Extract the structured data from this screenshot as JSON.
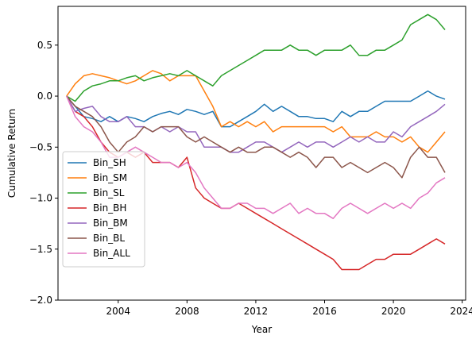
{
  "chart_data": {
    "type": "line",
    "title": "",
    "xlabel": "Year",
    "ylabel": "Cumulative Return",
    "xlim": [
      2000.5,
      2024.2
    ],
    "ylim": [
      -2.0,
      0.88
    ],
    "xticks": [
      2004,
      2008,
      2012,
      2016,
      2020,
      2024
    ],
    "yticks": [
      -2.0,
      -1.5,
      -1.0,
      -0.5,
      0.0,
      0.5
    ],
    "ytick_labels": [
      "−2.0",
      "−1.5",
      "−1.0",
      "−0.5",
      "0.0",
      "0.5"
    ],
    "grid": false,
    "legend_position": "lower-left",
    "series": [
      {
        "name": "Bin_SH",
        "color": "#1f77b4",
        "x": [
          2001.0,
          2001.5,
          2002.0,
          2002.5,
          2003.0,
          2003.5,
          2004.0,
          2004.5,
          2005.0,
          2005.5,
          2006.0,
          2006.5,
          2007.0,
          2007.5,
          2008.0,
          2008.5,
          2009.0,
          2009.5,
          2010.0,
          2010.5,
          2011.0,
          2011.5,
          2012.0,
          2012.5,
          2013.0,
          2013.5,
          2014.0,
          2014.5,
          2015.0,
          2015.5,
          2016.0,
          2016.5,
          2017.0,
          2017.5,
          2018.0,
          2018.5,
          2019.0,
          2019.5,
          2020.0,
          2020.5,
          2021.0,
          2021.5,
          2022.0,
          2022.5,
          2023.0
        ],
        "y": [
          0.0,
          -0.1,
          -0.2,
          -0.22,
          -0.25,
          -0.2,
          -0.25,
          -0.2,
          -0.22,
          -0.25,
          -0.2,
          -0.17,
          -0.15,
          -0.18,
          -0.13,
          -0.15,
          -0.18,
          -0.15,
          -0.3,
          -0.3,
          -0.25,
          -0.2,
          -0.15,
          -0.08,
          -0.15,
          -0.1,
          -0.15,
          -0.2,
          -0.2,
          -0.22,
          -0.22,
          -0.25,
          -0.15,
          -0.2,
          -0.15,
          -0.15,
          -0.1,
          -0.05,
          -0.05,
          -0.05,
          -0.05,
          0.0,
          0.05,
          0.0,
          -0.03
        ]
      },
      {
        "name": "Bin_SM",
        "color": "#ff7f0e",
        "x": [
          2001.0,
          2001.5,
          2002.0,
          2002.5,
          2003.0,
          2003.5,
          2004.0,
          2004.5,
          2005.0,
          2005.5,
          2006.0,
          2006.5,
          2007.0,
          2007.5,
          2008.0,
          2008.5,
          2009.0,
          2009.5,
          2010.0,
          2010.5,
          2011.0,
          2011.5,
          2012.0,
          2012.5,
          2013.0,
          2013.5,
          2014.0,
          2014.5,
          2015.0,
          2015.5,
          2016.0,
          2016.5,
          2017.0,
          2017.5,
          2018.0,
          2018.5,
          2019.0,
          2019.5,
          2020.0,
          2020.5,
          2021.0,
          2021.5,
          2022.0,
          2022.5,
          2023.0
        ],
        "y": [
          0.0,
          0.12,
          0.2,
          0.22,
          0.2,
          0.18,
          0.15,
          0.12,
          0.15,
          0.2,
          0.25,
          0.22,
          0.15,
          0.2,
          0.2,
          0.2,
          0.05,
          -0.1,
          -0.3,
          -0.25,
          -0.3,
          -0.25,
          -0.3,
          -0.25,
          -0.35,
          -0.3,
          -0.3,
          -0.3,
          -0.3,
          -0.3,
          -0.3,
          -0.35,
          -0.3,
          -0.4,
          -0.4,
          -0.4,
          -0.35,
          -0.4,
          -0.4,
          -0.45,
          -0.4,
          -0.5,
          -0.55,
          -0.45,
          -0.35
        ]
      },
      {
        "name": "Bin_SL",
        "color": "#2ca02c",
        "x": [
          2001.0,
          2001.5,
          2002.0,
          2002.5,
          2003.0,
          2003.5,
          2004.0,
          2004.5,
          2005.0,
          2005.5,
          2006.0,
          2006.5,
          2007.0,
          2007.5,
          2008.0,
          2008.5,
          2009.0,
          2009.5,
          2010.0,
          2010.5,
          2011.0,
          2011.5,
          2012.0,
          2012.5,
          2013.0,
          2013.5,
          2014.0,
          2014.5,
          2015.0,
          2015.5,
          2016.0,
          2016.5,
          2017.0,
          2017.5,
          2018.0,
          2018.5,
          2019.0,
          2019.5,
          2020.0,
          2020.5,
          2021.0,
          2021.5,
          2022.0,
          2022.5,
          2023.0
        ],
        "y": [
          0.0,
          -0.05,
          0.05,
          0.1,
          0.12,
          0.15,
          0.15,
          0.18,
          0.2,
          0.15,
          0.18,
          0.2,
          0.22,
          0.2,
          0.25,
          0.2,
          0.15,
          0.1,
          0.2,
          0.25,
          0.3,
          0.35,
          0.4,
          0.45,
          0.45,
          0.45,
          0.5,
          0.45,
          0.45,
          0.4,
          0.45,
          0.45,
          0.45,
          0.5,
          0.4,
          0.4,
          0.45,
          0.45,
          0.5,
          0.55,
          0.7,
          0.75,
          0.8,
          0.75,
          0.65
        ]
      },
      {
        "name": "Bin_BH",
        "color": "#d62728",
        "x": [
          2001.0,
          2001.5,
          2002.0,
          2002.5,
          2003.0,
          2003.5,
          2004.0,
          2004.5,
          2005.0,
          2005.5,
          2006.0,
          2006.5,
          2007.0,
          2007.5,
          2008.0,
          2008.5,
          2009.0,
          2009.5,
          2010.0,
          2010.5,
          2011.0,
          2011.5,
          2012.0,
          2012.5,
          2013.0,
          2013.5,
          2014.0,
          2014.5,
          2015.0,
          2015.5,
          2016.0,
          2016.5,
          2017.0,
          2017.5,
          2018.0,
          2018.5,
          2019.0,
          2019.5,
          2020.0,
          2020.5,
          2021.0,
          2021.5,
          2022.0,
          2022.5,
          2023.0
        ],
        "y": [
          0.0,
          -0.15,
          -0.2,
          -0.3,
          -0.45,
          -0.55,
          -0.6,
          -0.55,
          -0.6,
          -0.55,
          -0.65,
          -0.65,
          -0.65,
          -0.7,
          -0.6,
          -0.9,
          -1.0,
          -1.05,
          -1.1,
          -1.1,
          -1.05,
          -1.1,
          -1.15,
          -1.2,
          -1.25,
          -1.3,
          -1.35,
          -1.4,
          -1.45,
          -1.5,
          -1.55,
          -1.6,
          -1.7,
          -1.7,
          -1.7,
          -1.65,
          -1.6,
          -1.6,
          -1.55,
          -1.55,
          -1.55,
          -1.5,
          -1.45,
          -1.4,
          -1.45
        ]
      },
      {
        "name": "Bin_BM",
        "color": "#9467bd",
        "x": [
          2001.0,
          2001.5,
          2002.0,
          2002.5,
          2003.0,
          2003.5,
          2004.0,
          2004.5,
          2005.0,
          2005.5,
          2006.0,
          2006.5,
          2007.0,
          2007.5,
          2008.0,
          2008.5,
          2009.0,
          2009.5,
          2010.0,
          2010.5,
          2011.0,
          2011.5,
          2012.0,
          2012.5,
          2013.0,
          2013.5,
          2014.0,
          2014.5,
          2015.0,
          2015.5,
          2016.0,
          2016.5,
          2017.0,
          2017.5,
          2018.0,
          2018.5,
          2019.0,
          2019.5,
          2020.0,
          2020.5,
          2021.0,
          2021.5,
          2022.0,
          2022.5,
          2023.0
        ],
        "y": [
          0.0,
          -0.15,
          -0.12,
          -0.1,
          -0.2,
          -0.25,
          -0.25,
          -0.2,
          -0.3,
          -0.3,
          -0.35,
          -0.3,
          -0.35,
          -0.3,
          -0.35,
          -0.35,
          -0.5,
          -0.5,
          -0.5,
          -0.55,
          -0.55,
          -0.5,
          -0.45,
          -0.45,
          -0.5,
          -0.55,
          -0.5,
          -0.45,
          -0.5,
          -0.45,
          -0.45,
          -0.5,
          -0.45,
          -0.4,
          -0.45,
          -0.4,
          -0.45,
          -0.45,
          -0.35,
          -0.4,
          -0.3,
          -0.25,
          -0.2,
          -0.15,
          -0.08
        ]
      },
      {
        "name": "Bin_BL",
        "color": "#8c564b",
        "x": [
          2001.0,
          2001.5,
          2002.0,
          2002.5,
          2003.0,
          2003.5,
          2004.0,
          2004.5,
          2005.0,
          2005.5,
          2006.0,
          2006.5,
          2007.0,
          2007.5,
          2008.0,
          2008.5,
          2009.0,
          2009.5,
          2010.0,
          2010.5,
          2011.0,
          2011.5,
          2012.0,
          2012.5,
          2013.0,
          2013.5,
          2014.0,
          2014.5,
          2015.0,
          2015.5,
          2016.0,
          2016.5,
          2017.0,
          2017.5,
          2018.0,
          2018.5,
          2019.0,
          2019.5,
          2020.0,
          2020.5,
          2021.0,
          2021.5,
          2022.0,
          2022.5,
          2023.0
        ],
        "y": [
          0.0,
          -0.1,
          -0.15,
          -0.2,
          -0.3,
          -0.45,
          -0.55,
          -0.45,
          -0.4,
          -0.3,
          -0.35,
          -0.3,
          -0.3,
          -0.3,
          -0.4,
          -0.45,
          -0.4,
          -0.45,
          -0.5,
          -0.55,
          -0.5,
          -0.55,
          -0.55,
          -0.5,
          -0.5,
          -0.55,
          -0.6,
          -0.55,
          -0.6,
          -0.7,
          -0.6,
          -0.6,
          -0.7,
          -0.65,
          -0.7,
          -0.75,
          -0.7,
          -0.65,
          -0.7,
          -0.8,
          -0.6,
          -0.5,
          -0.6,
          -0.6,
          -0.75
        ]
      },
      {
        "name": "Bin_ALL",
        "color": "#e377c2",
        "x": [
          2001.0,
          2001.5,
          2002.0,
          2002.5,
          2003.0,
          2003.5,
          2004.0,
          2004.5,
          2005.0,
          2005.5,
          2006.0,
          2006.5,
          2007.0,
          2007.5,
          2008.0,
          2008.5,
          2009.0,
          2009.5,
          2010.0,
          2010.5,
          2011.0,
          2011.5,
          2012.0,
          2012.5,
          2013.0,
          2013.5,
          2014.0,
          2014.5,
          2015.0,
          2015.5,
          2016.0,
          2016.5,
          2017.0,
          2017.5,
          2018.0,
          2018.5,
          2019.0,
          2019.5,
          2020.0,
          2020.5,
          2021.0,
          2021.5,
          2022.0,
          2022.5,
          2023.0
        ],
        "y": [
          0.0,
          -0.2,
          -0.3,
          -0.35,
          -0.45,
          -0.6,
          -0.6,
          -0.55,
          -0.5,
          -0.55,
          -0.6,
          -0.65,
          -0.65,
          -0.7,
          -0.65,
          -0.75,
          -0.9,
          -1.0,
          -1.1,
          -1.1,
          -1.05,
          -1.05,
          -1.1,
          -1.1,
          -1.15,
          -1.1,
          -1.05,
          -1.15,
          -1.1,
          -1.15,
          -1.15,
          -1.2,
          -1.1,
          -1.05,
          -1.1,
          -1.15,
          -1.1,
          -1.05,
          -1.1,
          -1.05,
          -1.1,
          -1.0,
          -0.95,
          -0.85,
          -0.8
        ]
      }
    ]
  }
}
